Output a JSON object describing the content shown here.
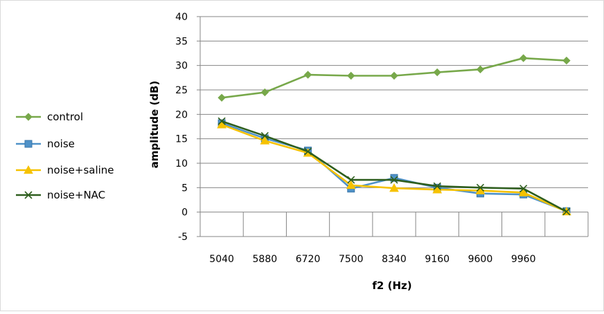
{
  "chart_data": {
    "type": "line",
    "title": "",
    "xlabel": "f2 (Hz)",
    "ylabel": "amplitude (dB)",
    "categories": [
      "5040",
      "5880",
      "6720",
      "7500",
      "8340",
      "9160",
      "9600",
      "9960",
      ""
    ],
    "ylim": [
      -5,
      40
    ],
    "yticks": [
      -5,
      0,
      5,
      10,
      15,
      20,
      25,
      30,
      35,
      40
    ],
    "grid": true,
    "legend_position": "left",
    "series": [
      {
        "name": "control",
        "color": "#77A84A",
        "marker": "diamond",
        "values": [
          23.4,
          24.5,
          28.1,
          27.9,
          27.9,
          28.6,
          29.2,
          31.5,
          31.0
        ]
      },
      {
        "name": "noise",
        "color": "#4F92C8",
        "marker": "square",
        "values": [
          18.2,
          15.1,
          12.6,
          4.8,
          7.0,
          5.0,
          3.8,
          3.6,
          0.2
        ]
      },
      {
        "name": "noise+saline",
        "color": "#F6C200",
        "marker": "triangle",
        "values": [
          17.9,
          14.6,
          12.1,
          5.5,
          4.9,
          4.6,
          4.4,
          4.0,
          0.1
        ]
      },
      {
        "name": "noise+NAC",
        "color": "#2E5E1E",
        "marker": "x",
        "values": [
          18.6,
          15.6,
          12.4,
          6.6,
          6.6,
          5.3,
          5.0,
          4.8,
          0.1
        ]
      }
    ]
  }
}
